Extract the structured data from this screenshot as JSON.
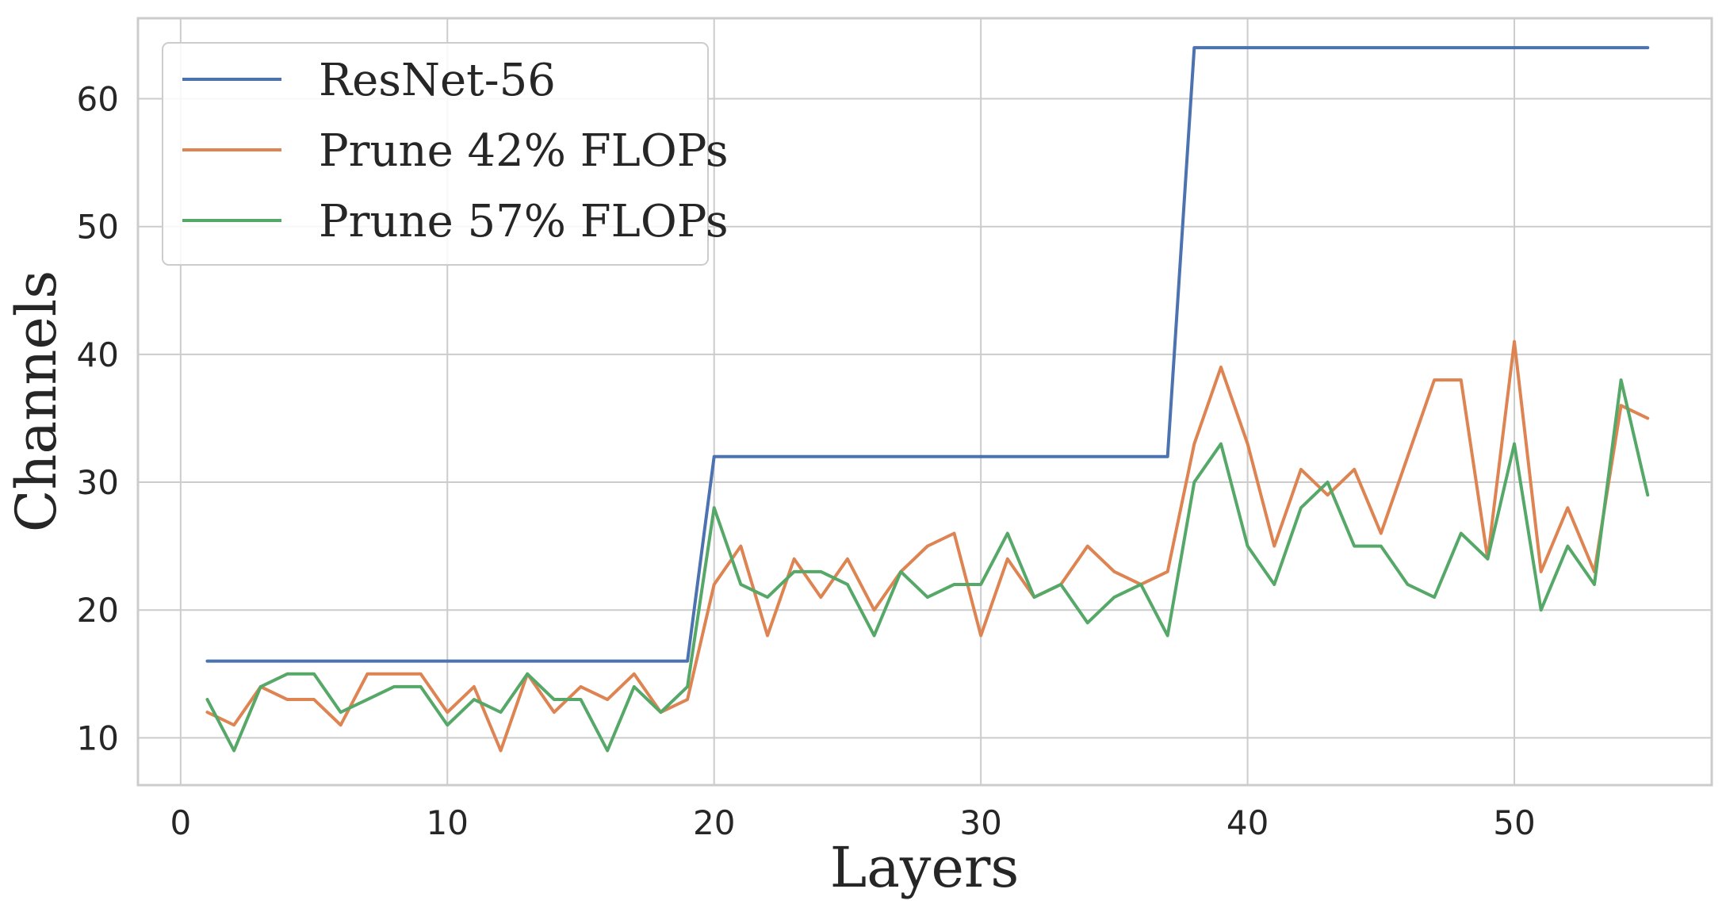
{
  "chart_data": {
    "type": "line",
    "xlabel": "Layers",
    "ylabel": "Channels",
    "xlim": [
      -1.6,
      57.4
    ],
    "ylim": [
      6.3,
      66.3
    ],
    "xticks": [
      0,
      10,
      20,
      30,
      40,
      50
    ],
    "yticks": [
      10,
      20,
      30,
      40,
      50,
      60
    ],
    "grid": true,
    "legend_position": "top-left",
    "x": [
      1,
      2,
      3,
      4,
      5,
      6,
      7,
      8,
      9,
      10,
      11,
      12,
      13,
      14,
      15,
      16,
      17,
      18,
      19,
      20,
      21,
      22,
      23,
      24,
      25,
      26,
      27,
      28,
      29,
      30,
      31,
      32,
      33,
      34,
      35,
      36,
      37,
      38,
      39,
      40,
      41,
      42,
      43,
      44,
      45,
      46,
      47,
      48,
      49,
      50,
      51,
      52,
      53,
      54,
      55
    ],
    "series": [
      {
        "name": "ResNet-56",
        "color": "#4c72b0",
        "values": [
          16,
          16,
          16,
          16,
          16,
          16,
          16,
          16,
          16,
          16,
          16,
          16,
          16,
          16,
          16,
          16,
          16,
          16,
          16,
          32,
          32,
          32,
          32,
          32,
          32,
          32,
          32,
          32,
          32,
          32,
          32,
          32,
          32,
          32,
          32,
          32,
          32,
          64,
          64,
          64,
          64,
          64,
          64,
          64,
          64,
          64,
          64,
          64,
          64,
          64,
          64,
          64,
          64,
          64,
          64
        ]
      },
      {
        "name": "Prune 42% FLOPs",
        "color": "#dd8452",
        "values": [
          12,
          11,
          14,
          13,
          13,
          11,
          15,
          15,
          15,
          12,
          14,
          9,
          15,
          12,
          14,
          13,
          15,
          12,
          13,
          22,
          25,
          18,
          24,
          21,
          24,
          20,
          23,
          25,
          26,
          18,
          24,
          21,
          22,
          25,
          23,
          22,
          23,
          33,
          39,
          33,
          25,
          31,
          29,
          31,
          26,
          32,
          38,
          38,
          24,
          41,
          23,
          28,
          23,
          36,
          35
        ]
      },
      {
        "name": "Prune 57% FLOPs",
        "color": "#55a868",
        "values": [
          13,
          9,
          14,
          15,
          15,
          12,
          13,
          14,
          14,
          11,
          13,
          12,
          15,
          13,
          13,
          9,
          14,
          12,
          14,
          28,
          22,
          21,
          23,
          23,
          22,
          18,
          23,
          21,
          22,
          22,
          26,
          21,
          22,
          19,
          21,
          22,
          18,
          30,
          33,
          25,
          22,
          28,
          30,
          25,
          25,
          22,
          21,
          26,
          24,
          33,
          20,
          25,
          22,
          38,
          29
        ]
      }
    ]
  }
}
